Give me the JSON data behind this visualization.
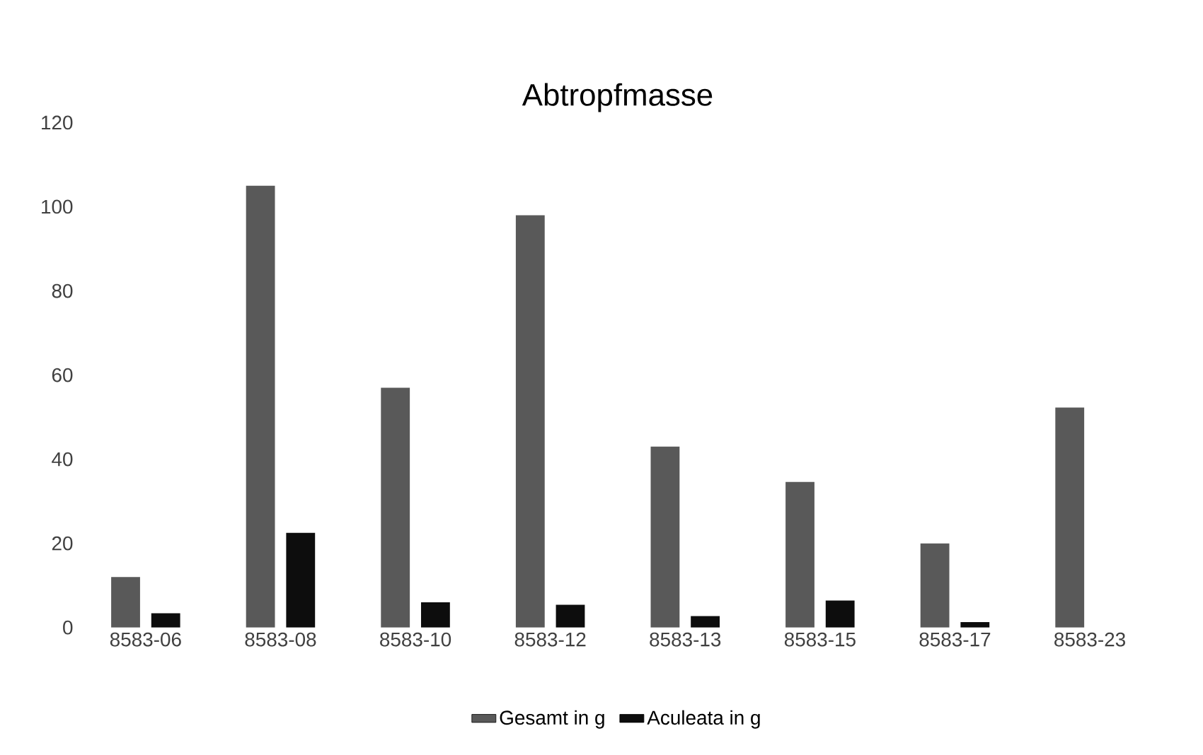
{
  "chart_data": {
    "type": "bar",
    "title": "Abtropfmasse",
    "categories": [
      "8583-06",
      "8583-08",
      "8583-10",
      "8583-12",
      "8583-13",
      "8583-15",
      "8583-17",
      "8583-23"
    ],
    "series": [
      {
        "name": "Gesamt in g",
        "color": "#595959",
        "values": [
          12,
          105,
          57,
          98,
          43,
          34.6,
          20,
          52.3
        ]
      },
      {
        "name": "Aculeata in g",
        "color": "#0d0d0d",
        "values": [
          3.4,
          22.5,
          6,
          5.4,
          2.7,
          6.4,
          1.3,
          null
        ]
      }
    ],
    "ylim": [
      0,
      120
    ],
    "yticks": [
      0,
      20,
      40,
      60,
      80,
      100,
      120
    ],
    "grid": false,
    "legend": "bottom"
  }
}
